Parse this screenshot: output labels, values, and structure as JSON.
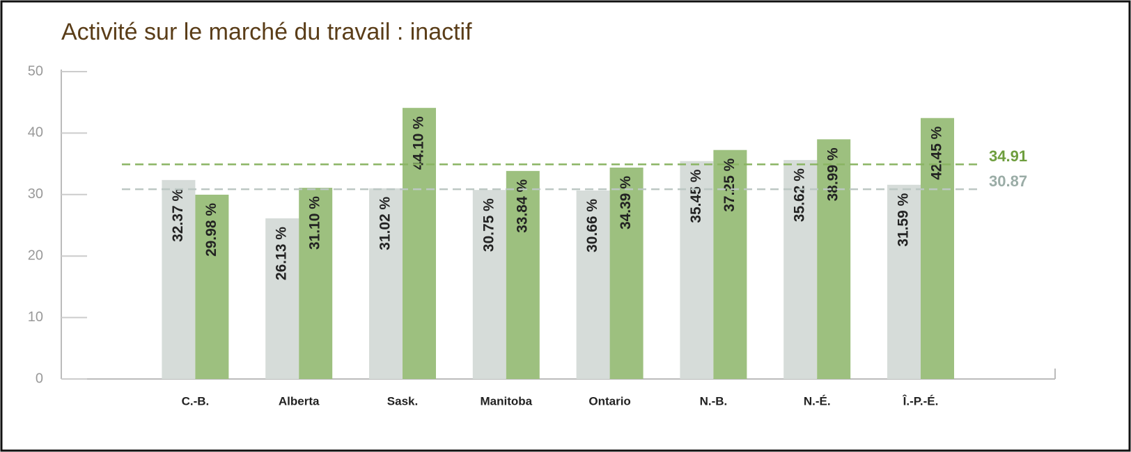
{
  "chart_data": {
    "type": "bar",
    "title": "Activité sur le marché du travail : inactif",
    "categories": [
      "C.-B.",
      "Alberta",
      "Sask.",
      "Manitoba",
      "Ontario",
      "N.-B.",
      "N.-É.",
      "Î.-P.-É."
    ],
    "series": [
      {
        "color": "#d6dcd9",
        "values": [
          32.37,
          26.13,
          31.02,
          30.75,
          30.66,
          35.45,
          35.62,
          31.59
        ],
        "value_labels": [
          "32.37 %",
          "26.13 %",
          "31.02 %",
          "30.75 %",
          "30.66 %",
          "35.45 %",
          "35.62 %",
          "31.59 %"
        ]
      },
      {
        "color": "#9dc07f",
        "values": [
          29.98,
          31.1,
          44.1,
          33.84,
          34.39,
          37.25,
          38.99,
          42.45
        ],
        "value_labels": [
          "29.98 %",
          "31.10 %",
          "44.10 %",
          "33.84 %",
          "34.39 %",
          "37.25 %",
          "38.99 %",
          "42.45 %"
        ]
      }
    ],
    "reference_lines": [
      {
        "value": 34.91,
        "color": "#8ab463",
        "label_color": "#6e9e3e"
      },
      {
        "value": 30.87,
        "color": "#bcc7c3",
        "label_color": "#9aaca6"
      }
    ],
    "ylim": [
      0,
      50
    ],
    "yticks": [
      0,
      10,
      20,
      30,
      40,
      50
    ]
  }
}
